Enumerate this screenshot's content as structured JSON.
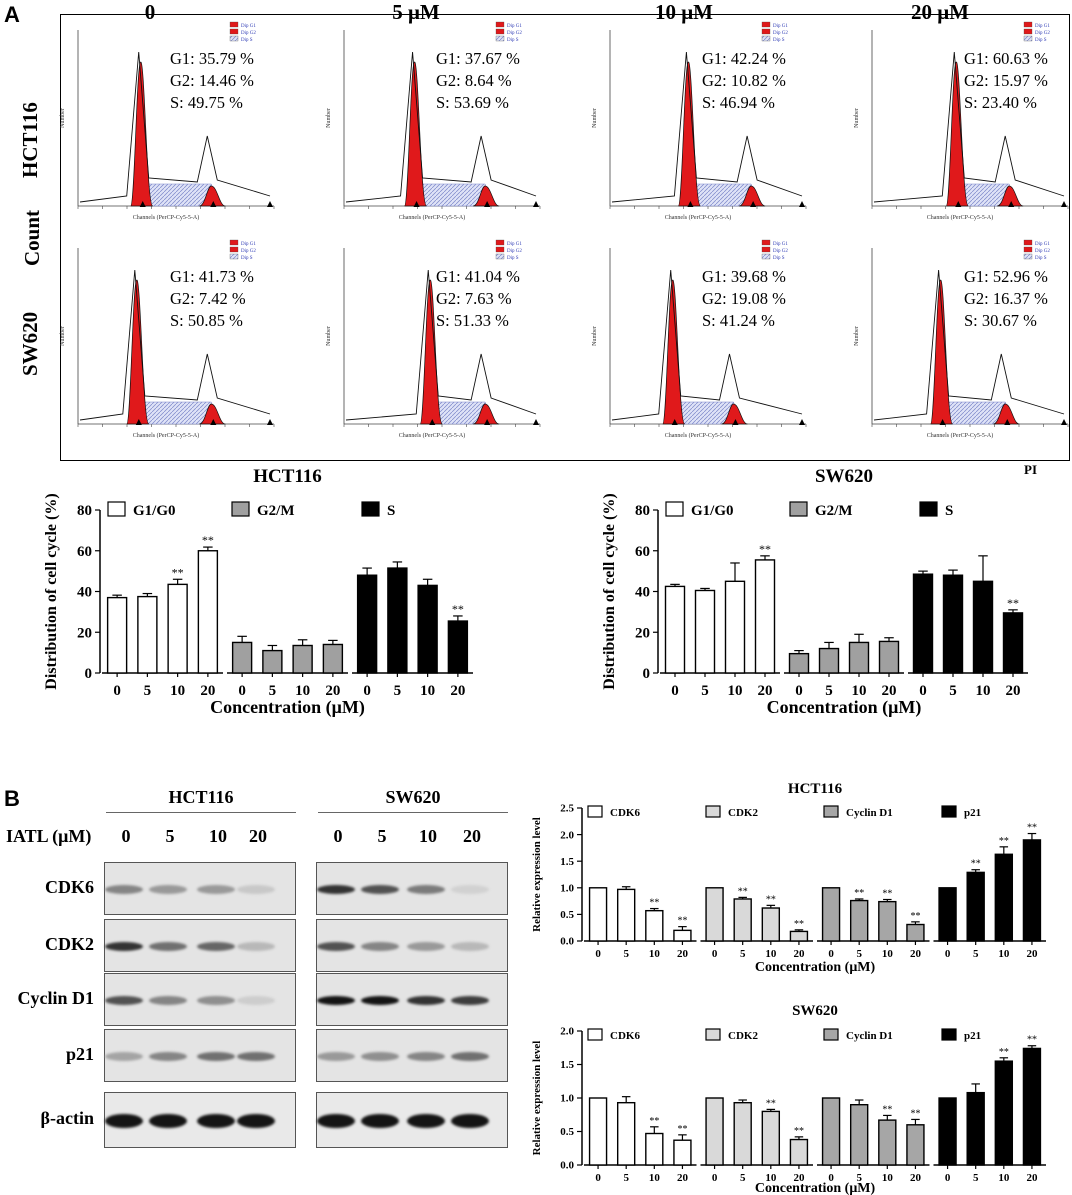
{
  "panel_a_label": "A",
  "panel_b_label": "B",
  "flow": {
    "concentration_headers": [
      "0",
      "5 μM",
      "10 μM",
      "20 μM"
    ],
    "row_labels": [
      "HCT116",
      "SW620"
    ],
    "y_axis_label": "Count",
    "x_axis_label": "PI",
    "hist_xlabel": "Channels (PerCP-Cy5-5-A)",
    "hist_ylabel": "Number",
    "legend": [
      "Dip G1",
      "Dip G2",
      "Dip S"
    ],
    "stats": [
      [
        {
          "g1": "G1: 35.79 %",
          "g2": "G2: 14.46 %",
          "s": "S: 49.75 %"
        },
        {
          "g1": "G1: 37.67 %",
          "g2": "G2: 8.64 %",
          "s": "S: 53.69 %"
        },
        {
          "g1": "G1: 42.24 %",
          "g2": "G2: 10.82 %",
          "s": "S: 46.94 %"
        },
        {
          "g1": "G1: 60.63 %",
          "g2": "G2: 15.97 %",
          "s": "S: 23.40 %"
        }
      ],
      [
        {
          "g1": "G1: 41.73 %",
          "g2": "G2: 7.42 %",
          "s": "S: 50.85 %"
        },
        {
          "g1": "G1: 41.04 %",
          "g2": "G2: 7.63 %",
          "s": "S: 51.33 %"
        },
        {
          "g1": "G1: 39.68 %",
          "g2": "G2: 19.08 %",
          "s": "S: 41.24 %"
        },
        {
          "g1": "G1: 52.96 %",
          "g2": "G2: 16.37 %",
          "s": "S: 30.67 %"
        }
      ]
    ]
  },
  "blot": {
    "cell_lines": [
      "HCT116",
      "SW620"
    ],
    "treatment_label": "IATL (μM)",
    "lanes": [
      "0",
      "5",
      "10",
      "20"
    ],
    "proteins": [
      "CDK6",
      "CDK2",
      "Cyclin D1",
      "p21",
      "β-actin"
    ],
    "band_intensity": {
      "HCT116": [
        [
          0.45,
          0.35,
          0.35,
          0.12
        ],
        [
          0.85,
          0.55,
          0.6,
          0.2
        ],
        [
          0.7,
          0.45,
          0.4,
          0.1
        ],
        [
          0.3,
          0.45,
          0.55,
          0.55
        ],
        [
          1,
          1,
          1,
          1
        ]
      ],
      "SW620": [
        [
          0.85,
          0.7,
          0.5,
          0.08
        ],
        [
          0.7,
          0.45,
          0.35,
          0.2
        ],
        [
          1,
          1,
          0.85,
          0.8
        ],
        [
          0.35,
          0.4,
          0.45,
          0.55
        ],
        [
          1,
          1,
          1,
          1
        ]
      ]
    }
  },
  "chart_data": [
    {
      "type": "bar",
      "title": "HCT116",
      "categories": [
        "0",
        "5",
        "10",
        "20"
      ],
      "xlabel": "Concentration (μM)",
      "ylabel": "Distribution of cell cycle (%)",
      "ylim": [
        0,
        80
      ],
      "yticks": [
        0,
        20,
        40,
        60,
        80
      ],
      "series": [
        {
          "name": "G1/G0",
          "color": "#ffffff",
          "values": [
            37,
            37.5,
            43.5,
            60
          ],
          "errors": [
            1.2,
            1.5,
            2.5,
            1.8
          ],
          "sig": [
            "",
            "",
            "**",
            "**"
          ]
        },
        {
          "name": "G2/M",
          "color": "#a0a0a0",
          "values": [
            15,
            11,
            13.5,
            14
          ],
          "errors": [
            3,
            2.5,
            2.8,
            2
          ],
          "sig": [
            "",
            "",
            "",
            ""
          ]
        },
        {
          "name": "S",
          "color": "#000000",
          "values": [
            48,
            51.5,
            43,
            25.5
          ],
          "errors": [
            3.5,
            3,
            3,
            2.5
          ],
          "sig": [
            "",
            "",
            "",
            "**"
          ]
        }
      ]
    },
    {
      "type": "bar",
      "title": "SW620",
      "categories": [
        "0",
        "5",
        "10",
        "20"
      ],
      "xlabel": "Concentration (μM)",
      "ylabel": "Distribution of cell cycle (%)",
      "ylim": [
        0,
        80
      ],
      "yticks": [
        0,
        20,
        40,
        60,
        80
      ],
      "series": [
        {
          "name": "G1/G0",
          "color": "#ffffff",
          "values": [
            42.5,
            40.5,
            45,
            55.5
          ],
          "errors": [
            1,
            1,
            9,
            2
          ],
          "sig": [
            "",
            "",
            "",
            "**"
          ]
        },
        {
          "name": "G2/M",
          "color": "#a0a0a0",
          "values": [
            9.5,
            12,
            15,
            15.5
          ],
          "errors": [
            1.5,
            3,
            4,
            1.8
          ],
          "sig": [
            "",
            "",
            "",
            ""
          ]
        },
        {
          "name": "S",
          "color": "#000000",
          "values": [
            48.5,
            48,
            45,
            29.5
          ],
          "errors": [
            1.5,
            2.5,
            12.5,
            1.5
          ],
          "sig": [
            "",
            "",
            "",
            "**"
          ]
        }
      ]
    },
    {
      "type": "bar",
      "title": "HCT116",
      "categories": [
        "0",
        "5",
        "10",
        "20"
      ],
      "xlabel": "Concentration (μM)",
      "ylabel": "Relative expression level",
      "ylim": [
        0,
        2.5
      ],
      "yticks": [
        0.0,
        0.5,
        1.0,
        1.5,
        2.0,
        2.5
      ],
      "series": [
        {
          "name": "CDK6",
          "color": "#ffffff",
          "values": [
            1.0,
            0.97,
            0.57,
            0.2
          ],
          "errors": [
            0,
            0.05,
            0.04,
            0.07
          ],
          "sig": [
            "",
            "",
            "**",
            "**"
          ]
        },
        {
          "name": "CDK2",
          "color": "#d9d9d9",
          "values": [
            1.0,
            0.79,
            0.62,
            0.18
          ],
          "errors": [
            0,
            0.03,
            0.05,
            0.03
          ],
          "sig": [
            "",
            "**",
            "**",
            "**"
          ]
        },
        {
          "name": "Cyclin D1",
          "color": "#a6a6a6",
          "values": [
            1.0,
            0.76,
            0.74,
            0.31
          ],
          "errors": [
            0,
            0.03,
            0.04,
            0.05
          ],
          "sig": [
            "",
            "**",
            "**",
            "**"
          ]
        },
        {
          "name": "p21",
          "color": "#000000",
          "values": [
            1.0,
            1.29,
            1.63,
            1.9
          ],
          "errors": [
            0,
            0.05,
            0.14,
            0.12
          ],
          "sig": [
            "",
            "**",
            "**",
            "**"
          ]
        }
      ]
    },
    {
      "type": "bar",
      "title": "SW620",
      "categories": [
        "0",
        "5",
        "10",
        "20"
      ],
      "xlabel": "Concentration (μM)",
      "ylabel": "Relative expression level",
      "ylim": [
        0,
        2.0
      ],
      "yticks": [
        0.0,
        0.5,
        1.0,
        1.5,
        2.0
      ],
      "series": [
        {
          "name": "CDK6",
          "color": "#ffffff",
          "values": [
            1.0,
            0.93,
            0.47,
            0.37
          ],
          "errors": [
            0,
            0.09,
            0.1,
            0.08
          ],
          "sig": [
            "",
            "",
            "**",
            "**"
          ]
        },
        {
          "name": "CDK2",
          "color": "#d9d9d9",
          "values": [
            1.0,
            0.93,
            0.8,
            0.38
          ],
          "errors": [
            0,
            0.04,
            0.03,
            0.04
          ],
          "sig": [
            "",
            "",
            "**",
            "**"
          ]
        },
        {
          "name": "Cyclin D1",
          "color": "#a6a6a6",
          "values": [
            1.0,
            0.9,
            0.67,
            0.6
          ],
          "errors": [
            0,
            0.07,
            0.07,
            0.08
          ],
          "sig": [
            "",
            "",
            "**",
            "**"
          ]
        },
        {
          "name": "p21",
          "color": "#000000",
          "values": [
            1.0,
            1.08,
            1.55,
            1.74
          ],
          "errors": [
            0,
            0.13,
            0.05,
            0.04
          ],
          "sig": [
            "",
            "",
            "**",
            "**"
          ]
        }
      ]
    }
  ]
}
